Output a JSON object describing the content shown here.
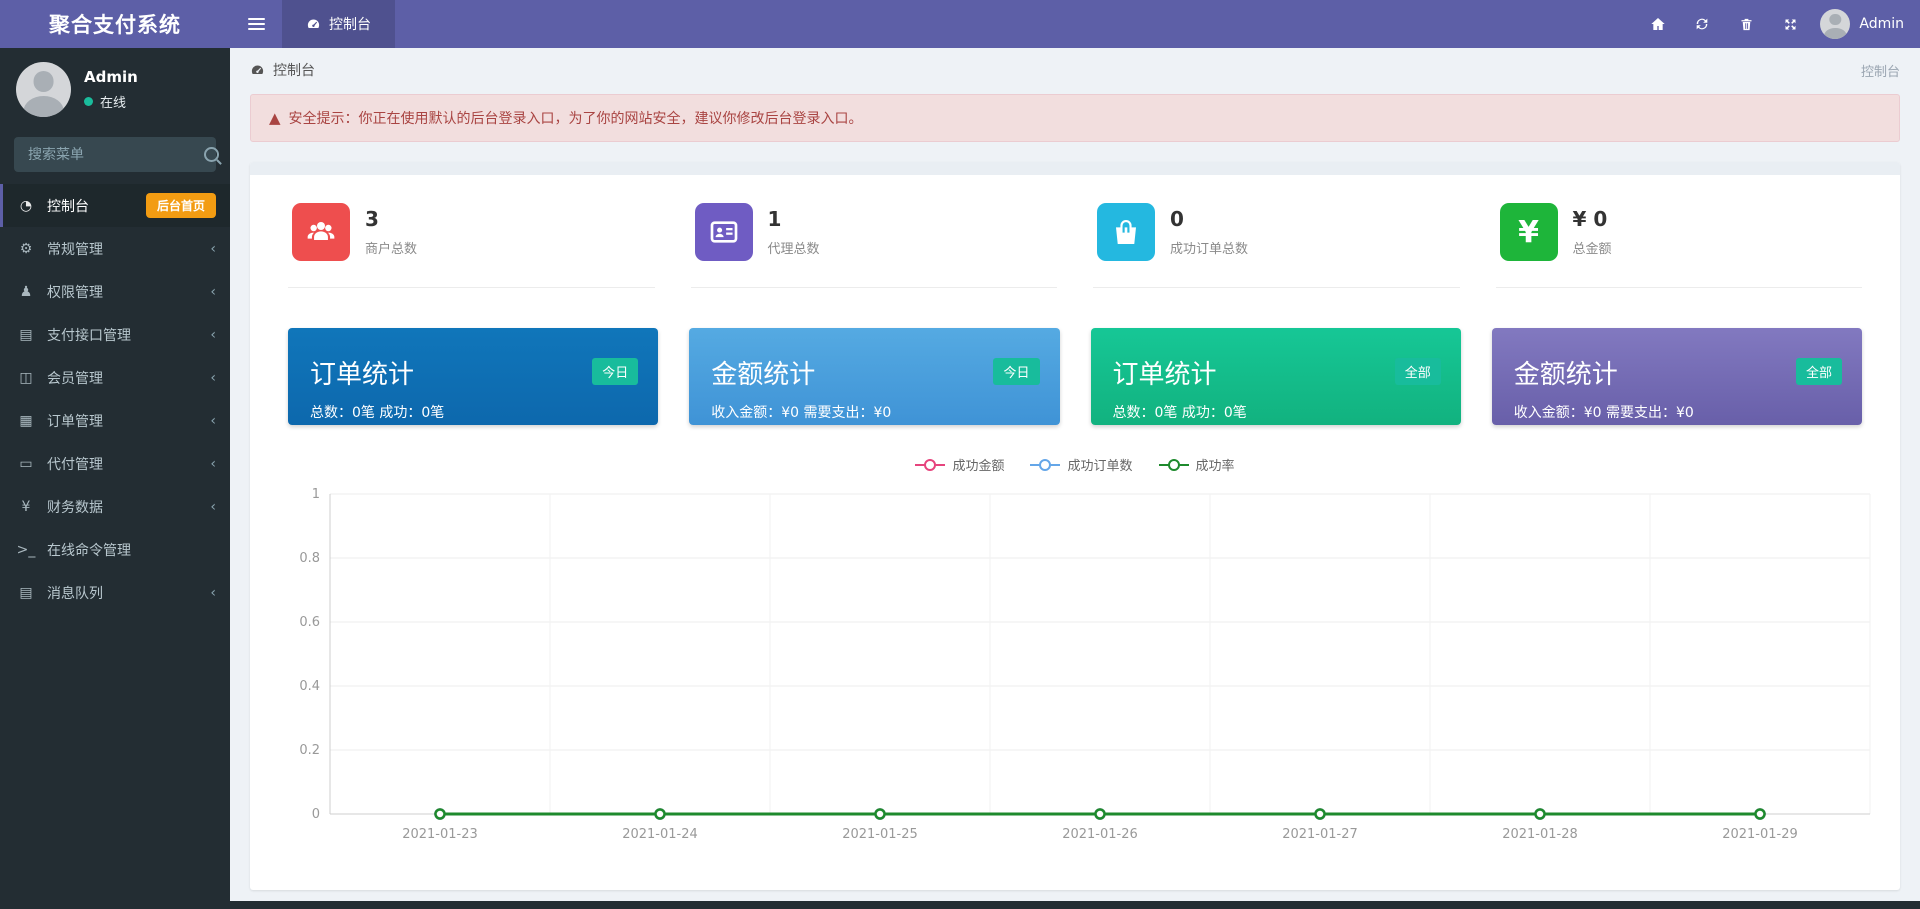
{
  "app": {
    "title": "聚合支付系统"
  },
  "navbar": {
    "tab_label": "控制台",
    "user_label": "Admin",
    "icons": [
      "home-icon",
      "refresh-icon",
      "trash-icon",
      "expand-icon"
    ]
  },
  "sidebar": {
    "user": {
      "name": "Admin",
      "status": "在线",
      "status_color": "#1abc9c"
    },
    "search_placeholder": "搜索菜单",
    "items": [
      {
        "label": "控制台",
        "icon": "◔",
        "badge": "后台首页",
        "active": true
      },
      {
        "label": "常规管理",
        "icon": "⚙",
        "chevron": "‹"
      },
      {
        "label": "权限管理",
        "icon": "♟",
        "chevron": "‹"
      },
      {
        "label": "支付接口管理",
        "icon": "▤",
        "chevron": "‹"
      },
      {
        "label": "会员管理",
        "icon": "◫",
        "chevron": "‹"
      },
      {
        "label": "订单管理",
        "icon": "▦",
        "chevron": "‹"
      },
      {
        "label": "代付管理",
        "icon": "▭",
        "chevron": "‹"
      },
      {
        "label": "财务数据",
        "icon": "¥",
        "chevron": "‹"
      },
      {
        "label": "在线命令管理",
        "icon": ">_",
        "chevron": ""
      },
      {
        "label": "消息队列",
        "icon": "▤",
        "chevron": "‹"
      }
    ]
  },
  "breadcrumb": {
    "left": "控制台",
    "right": "控制台"
  },
  "alert": {
    "text": "安全提示：你正在使用默认的后台登录入口，为了你的网站安全，建议你修改后台登录入口。"
  },
  "stats": [
    {
      "value": "3",
      "label": "商户总数",
      "color": "#ee4e4e",
      "icon": "users-icon"
    },
    {
      "value": "1",
      "label": "代理总数",
      "color": "#6f5cc3",
      "icon": "id-card-icon"
    },
    {
      "value": "0",
      "label": "成功订单总数",
      "color": "#24b8e0",
      "icon": "shopping-bag-icon"
    },
    {
      "value": "¥ 0",
      "label": "总金额",
      "color": "#1eb53a",
      "icon": "yen-icon"
    }
  ],
  "panels": [
    {
      "title": "订单统计",
      "badge": "今日",
      "text": "总数：0笔 成功：0笔",
      "bg_from": "#1076ba",
      "bg_to": "#0d68ad",
      "badge_color": "#18bc9c"
    },
    {
      "title": "金额统计",
      "badge": "今日",
      "text": "收入金额：¥0 需要支出：¥0",
      "bg_from": "#55aae2",
      "bg_to": "#3f93d6",
      "badge_color": "#18bc9c"
    },
    {
      "title": "订单统计",
      "badge": "全部",
      "text": "总数：0笔 成功：0笔",
      "bg_from": "#16c796",
      "bg_to": "#12b27f",
      "badge_color": "#18bc9c"
    },
    {
      "title": "金额统计",
      "badge": "全部",
      "text": "收入金额：¥0 需要支出：¥0",
      "bg_from": "#8279c0",
      "bg_to": "#685fa9",
      "badge_color": "#18bc9c"
    }
  ],
  "chart_data": {
    "type": "line",
    "categories": [
      "2021-01-23",
      "2021-01-24",
      "2021-01-25",
      "2021-01-26",
      "2021-01-27",
      "2021-01-28",
      "2021-01-29"
    ],
    "series": [
      {
        "name": "成功金额",
        "color": "#e6447d",
        "values": [
          0,
          0,
          0,
          0,
          0,
          0,
          0
        ]
      },
      {
        "name": "成功订单数",
        "color": "#64a6e8",
        "values": [
          0,
          0,
          0,
          0,
          0,
          0,
          0
        ]
      },
      {
        "name": "成功率",
        "color": "#1e8a2d",
        "values": [
          0,
          0,
          0,
          0,
          0,
          0,
          0
        ]
      }
    ],
    "title": "",
    "xlabel": "",
    "ylabel": "",
    "ylim": [
      0,
      1
    ],
    "yticks": [
      0,
      0.2,
      0.4,
      0.6,
      0.8,
      1
    ],
    "grid": true,
    "legend_position": "top-center"
  }
}
